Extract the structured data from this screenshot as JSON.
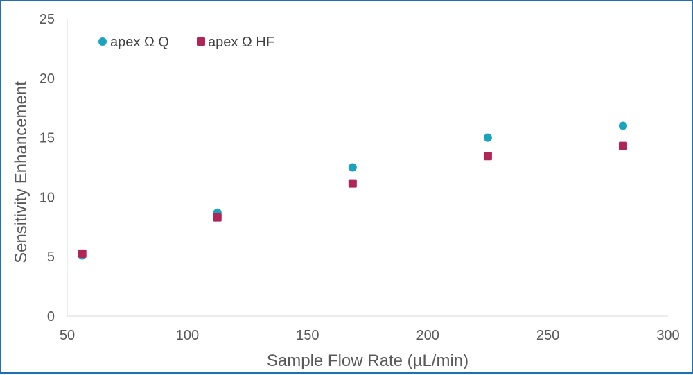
{
  "chart_data": {
    "type": "scatter",
    "title": "",
    "xlabel": "Sample Flow Rate (µL/min)",
    "ylabel": "Sensitivity Enhancement",
    "xlim": [
      50,
      300
    ],
    "ylim": [
      0,
      25
    ],
    "x_ticks": [
      50,
      100,
      150,
      200,
      250,
      300
    ],
    "y_ticks": [
      0,
      5,
      10,
      15,
      20,
      25
    ],
    "grid": false,
    "legend_position": "top-left",
    "series": [
      {
        "name": "apex Ω Q",
        "marker": "circle",
        "color": "#1aa3bf",
        "points": [
          {
            "x": 56.25,
            "y": 5.1
          },
          {
            "x": 112.5,
            "y": 8.7
          },
          {
            "x": 168.75,
            "y": 12.5
          },
          {
            "x": 225,
            "y": 15.0
          },
          {
            "x": 281.25,
            "y": 16.0
          }
        ]
      },
      {
        "name": "apex Ω HF",
        "marker": "square",
        "color": "#b02457",
        "points": [
          {
            "x": 56.25,
            "y": 5.25
          },
          {
            "x": 112.5,
            "y": 8.3
          },
          {
            "x": 168.75,
            "y": 11.15
          },
          {
            "x": 225,
            "y": 13.45
          },
          {
            "x": 281.25,
            "y": 14.3
          }
        ]
      }
    ]
  }
}
